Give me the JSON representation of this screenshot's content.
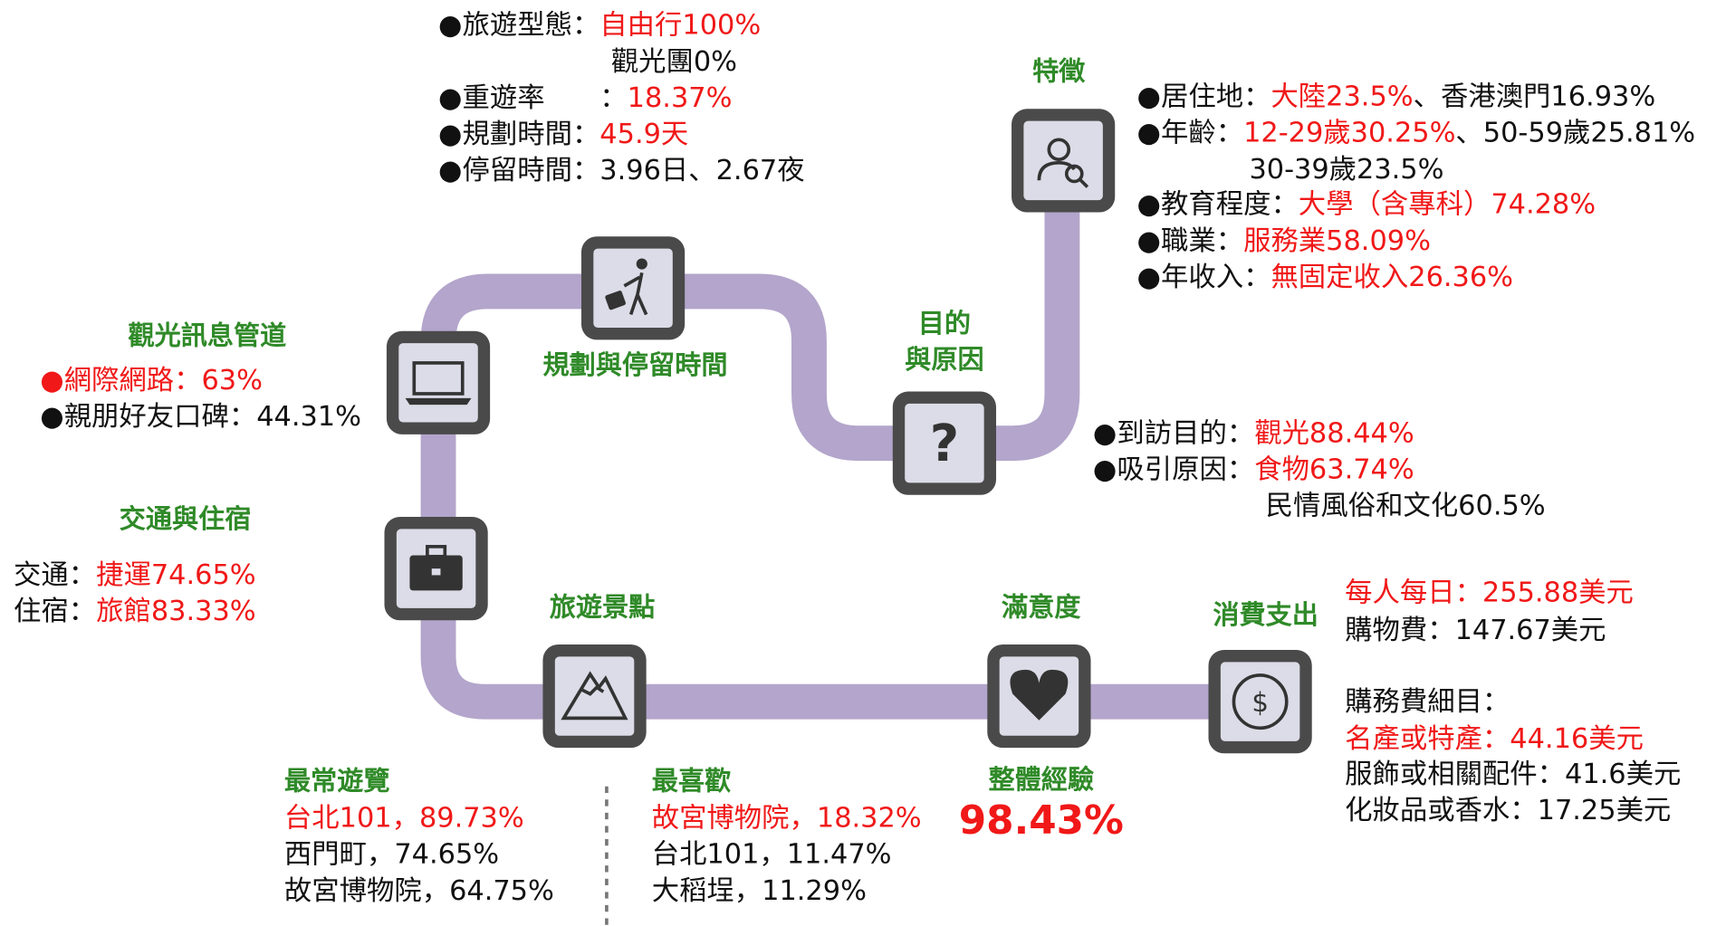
{
  "planning": {
    "title": "規劃與停留時間",
    "lines": [
      [
        "●旅遊型態：",
        "自由行100%"
      ],
      [
        "觀光團0%"
      ],
      [
        "●重遊率　　：",
        "18.37%"
      ],
      [
        "●規劃時間：",
        "45.9天"
      ],
      [
        "●停留時間：3.96日、2.67夜"
      ]
    ]
  },
  "traits": {
    "title": "特徵",
    "lines": [
      [
        "●居住地：",
        "大陸23.5%",
        "、香港澳門16.93%"
      ],
      [
        "●年齡：",
        "12-29歲30.25%",
        "、50-59歲25.81%"
      ],
      [
        "30-39歲23.5%"
      ],
      [
        "●教育程度：",
        "大學（含專科）74.28%"
      ],
      [
        "●職業：",
        "服務業58.09%"
      ],
      [
        "●年收入：",
        "無固定收入26.36%"
      ]
    ]
  },
  "purpose": {
    "title": [
      "目的",
      "與原因"
    ],
    "lines": [
      [
        "●到訪目的：",
        "觀光88.44%"
      ],
      [
        "●吸引原因：",
        "食物63.74%"
      ],
      [
        "民情風俗和文化60.5%"
      ]
    ]
  },
  "info": {
    "title": "觀光訊息管道",
    "lines": [
      [
        "●網際網路：63%"
      ],
      [
        "●親朋好友口碑：44.31%"
      ]
    ]
  },
  "transport": {
    "title": "交通與住宿",
    "lines": [
      [
        "交通：",
        "捷運74.65%"
      ],
      [
        "住宿：",
        "旅館83.33%"
      ]
    ]
  },
  "attractions": {
    "title": "旅遊景點",
    "groups": [
      {
        "title": "最常遊覽",
        "lines": [
          "台北101，89.73%",
          "西門町，74.65%",
          "故宮博物院，64.75%"
        ]
      },
      {
        "title": "最喜歡",
        "lines": [
          "故宮博物院，18.32%",
          "台北101，11.47%",
          "大稻埕，11.29%"
        ]
      }
    ]
  },
  "satisfaction": {
    "title": "滿意度",
    "subtitle": "整體經驗",
    "value": "98.43%"
  },
  "spending": {
    "title": "消費支出",
    "lines": [
      "每人每日：255.88美元",
      "購物費：147.67美元",
      "購務費細目：",
      "名產或特產：44.16美元",
      "服飾或相關配件：41.6美元",
      "化妝品或香水：17.25美元"
    ]
  }
}
